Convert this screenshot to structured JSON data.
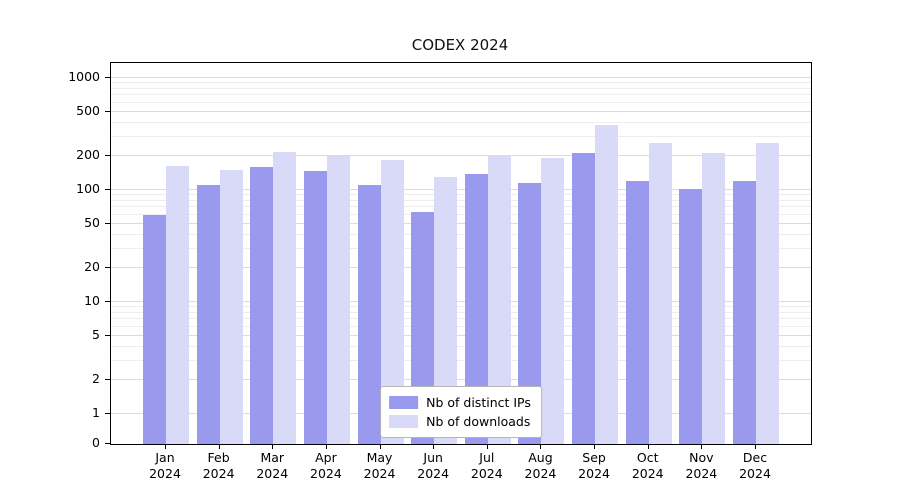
{
  "chart_data": {
    "type": "bar",
    "title": "CODEX 2024",
    "categories": [
      "Jan 2024",
      "Feb 2024",
      "Mar 2024",
      "Apr 2024",
      "May 2024",
      "Jun 2024",
      "Jul 2024",
      "Aug 2024",
      "Sep 2024",
      "Oct 2024",
      "Nov 2024",
      "Dec 2024"
    ],
    "series": [
      {
        "name": "Nb of distinct IPs",
        "color": "#9999ee",
        "values": [
          60,
          110,
          160,
          148,
          110,
          64,
          138,
          115,
          215,
          120,
          103,
          120
        ]
      },
      {
        "name": "Nb of downloads",
        "color": "#d9d9f8",
        "values": [
          165,
          150,
          220,
          203,
          186,
          130,
          205,
          193,
          380,
          262,
          213,
          265
        ]
      }
    ],
    "xlabel": "",
    "ylabel": "",
    "yscale": "symlog",
    "ylim": [
      0,
      1500
    ],
    "y_major_ticks": [
      0,
      1,
      2,
      5,
      10,
      20,
      50,
      100,
      200,
      500,
      1000
    ],
    "y_minor_ticks": [
      3,
      4,
      6,
      7,
      8,
      9,
      30,
      40,
      60,
      70,
      80,
      90,
      300,
      400,
      600,
      700,
      800,
      900
    ],
    "grid": true,
    "legend_position": "lower center"
  }
}
